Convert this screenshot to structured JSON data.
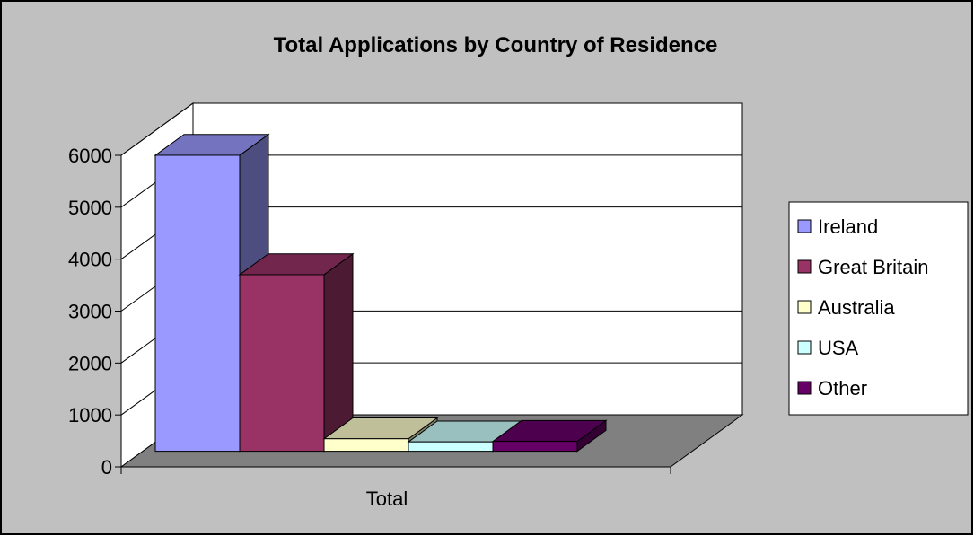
{
  "chart_data": {
    "type": "bar",
    "title": "Total Applications by Country of Residence",
    "categories": [
      "Total"
    ],
    "series": [
      {
        "name": "Ireland",
        "values": [
          5700
        ],
        "color": "#9999ff"
      },
      {
        "name": "Great Britain",
        "values": [
          3400
        ],
        "color": "#993366"
      },
      {
        "name": "Australia",
        "values": [
          240
        ],
        "color": "#ffffcc"
      },
      {
        "name": "USA",
        "values": [
          180
        ],
        "color": "#ccffff"
      },
      {
        "name": "Other",
        "values": [
          190
        ],
        "color": "#660066"
      }
    ],
    "yticks": [
      "0",
      "1000",
      "2000",
      "3000",
      "4000",
      "5000",
      "6000"
    ],
    "ylim": [
      0,
      6000
    ],
    "grid": true,
    "three_d": true,
    "legend_position": "right",
    "colors": {
      "chart_area": "#c0c0c0",
      "plot_walls": "#ffffff",
      "floor": "#808080",
      "border": "#000000"
    }
  }
}
